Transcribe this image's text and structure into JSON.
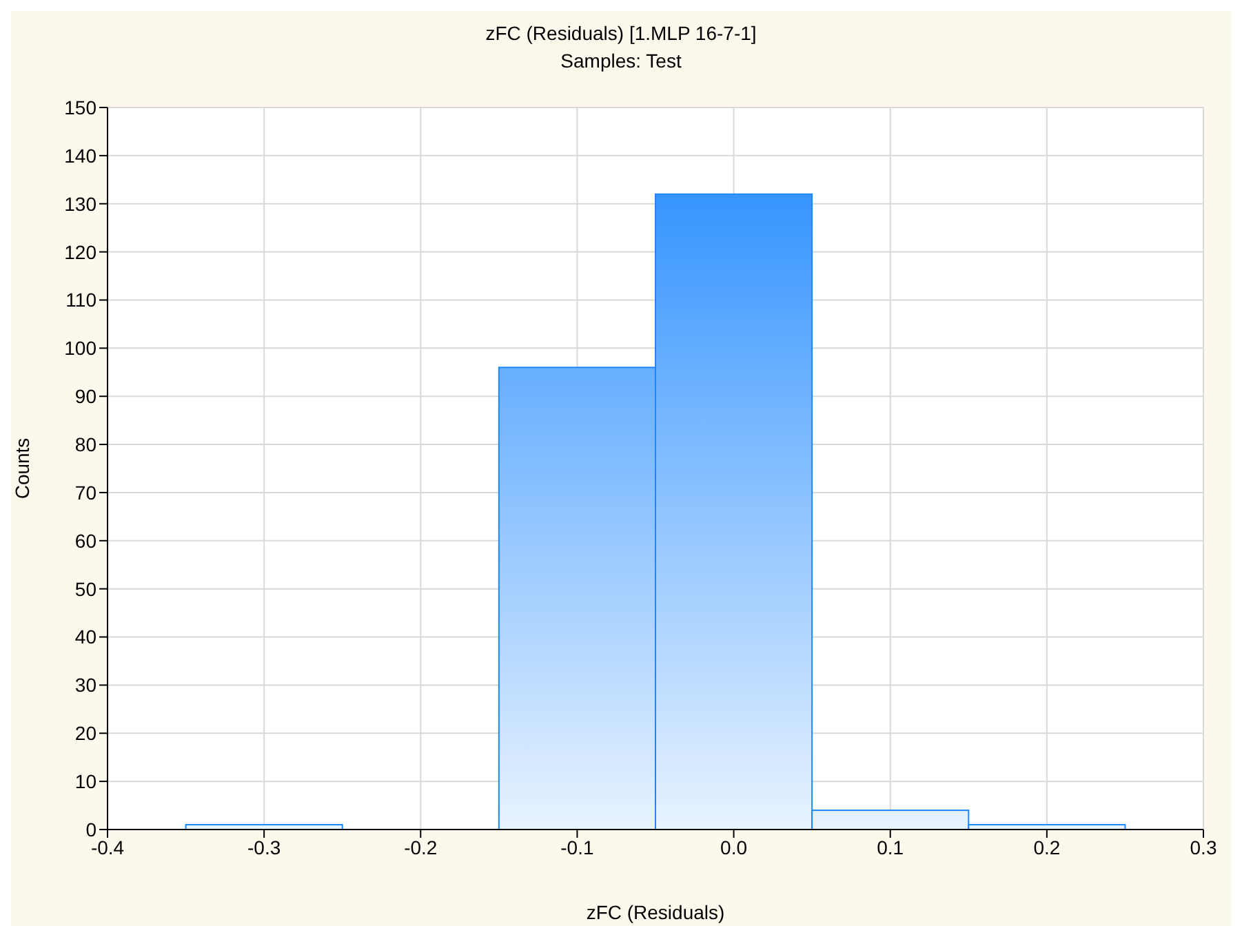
{
  "chart_data": {
    "type": "histogram",
    "title": "zFC (Residuals) [1.MLP 16-7-1]",
    "subtitle": "Samples: Test",
    "xlabel": "zFC (Residuals)",
    "ylabel": "Counts",
    "bins": [
      -0.35,
      -0.25,
      -0.15,
      -0.05,
      0.05,
      0.15,
      0.25
    ],
    "values": [
      1,
      0,
      96,
      132,
      4,
      1
    ],
    "color": "#1e88ff",
    "xlim": [
      -0.4,
      0.3
    ],
    "xticks": [
      -0.4,
      -0.3,
      -0.2,
      -0.1,
      {
        "value": 0,
        "label": "0.0"
      },
      0.1,
      0.2,
      0.3
    ],
    "ylim": [
      0,
      150
    ],
    "yticks": [
      0,
      10,
      20,
      30,
      40,
      50,
      60,
      70,
      80,
      90,
      100,
      110,
      120,
      130,
      140,
      150
    ],
    "grid": true
  }
}
